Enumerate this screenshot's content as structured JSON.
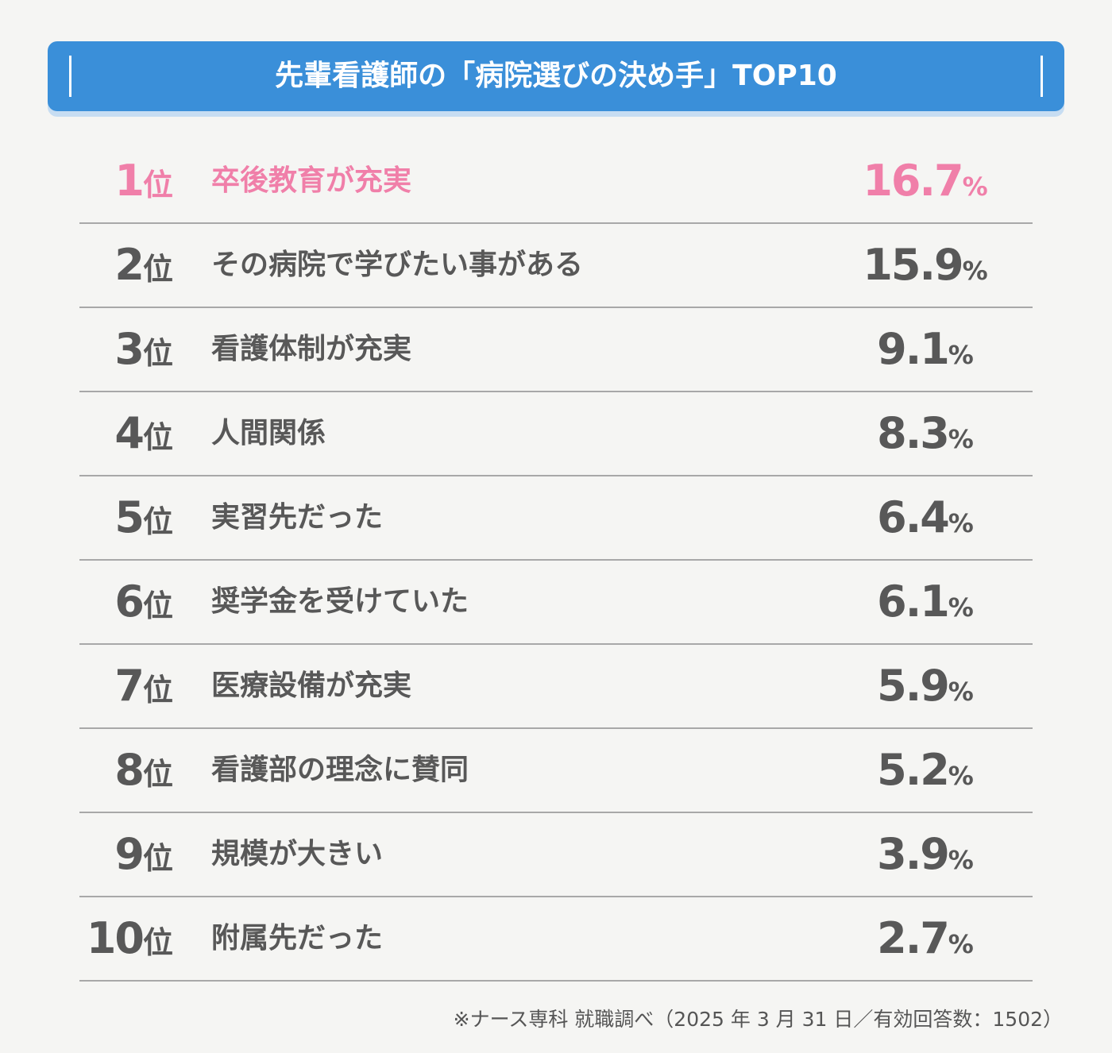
{
  "header": {
    "title": "先輩看護師の「病院選びの決め手」TOP10"
  },
  "rank_suffix": "位",
  "unit": "%",
  "highlight_color": "#f07fa9",
  "rows": [
    {
      "rank": 1,
      "label": "卒後教育が充実",
      "value": 16.7
    },
    {
      "rank": 2,
      "label": "その病院で学びたい事がある",
      "value": 15.9
    },
    {
      "rank": 3,
      "label": "看護体制が充実",
      "value": 9.1
    },
    {
      "rank": 4,
      "label": "人間関係",
      "value": 8.3
    },
    {
      "rank": 5,
      "label": "実習先だった",
      "value": 6.4
    },
    {
      "rank": 6,
      "label": "奨学金を受けていた",
      "value": 6.1
    },
    {
      "rank": 7,
      "label": "医療設備が充実",
      "value": 5.9
    },
    {
      "rank": 8,
      "label": "看護部の理念に賛同",
      "value": 5.2
    },
    {
      "rank": 9,
      "label": "規模が大きい",
      "value": 3.9
    },
    {
      "rank": 10,
      "label": "附属先だった",
      "value": 2.7
    }
  ],
  "footnote": "※ナース専科 就職調べ（2025 年 3 月 31 日／有効回答数：1502）"
}
